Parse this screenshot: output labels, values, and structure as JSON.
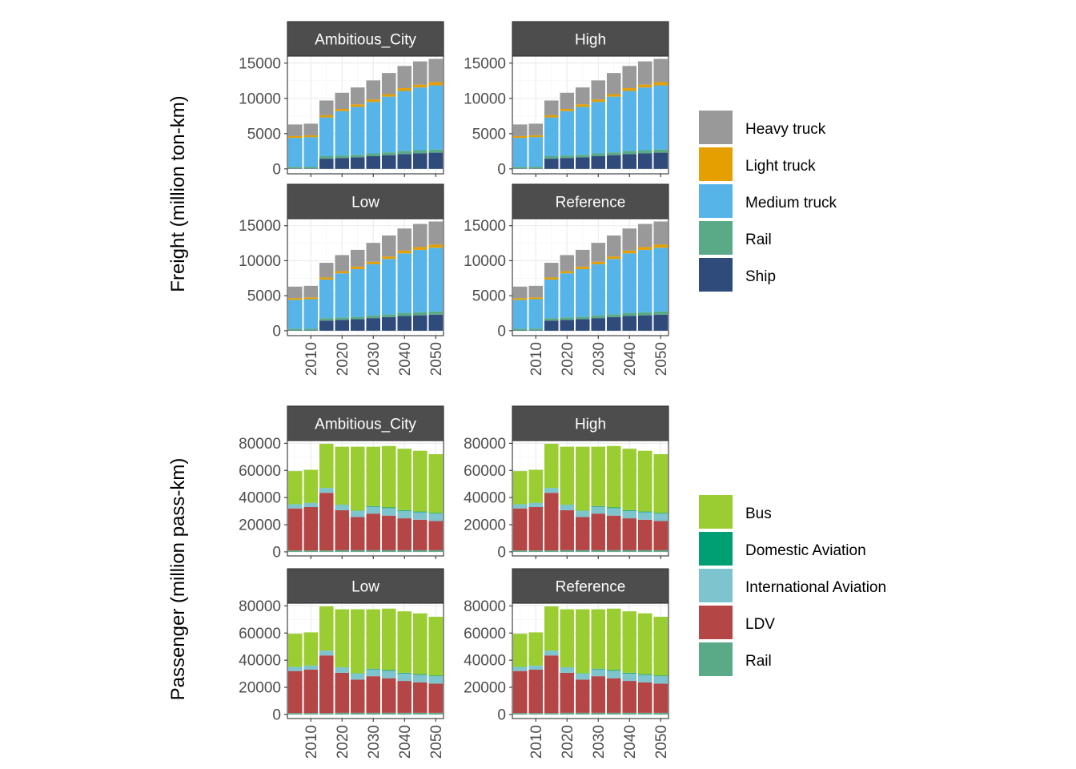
{
  "chart_data": [
    {
      "type": "bar",
      "stacked": true,
      "ylabel": "Freight (million ton-km)",
      "facets": [
        "Ambitious_City",
        "High",
        "Low",
        "Reference"
      ],
      "x": [
        2005,
        2010,
        2015,
        2020,
        2025,
        2030,
        2035,
        2040,
        2045,
        2050
      ],
      "x_ticks": [
        2010,
        2020,
        2030,
        2040,
        2050
      ],
      "y_ticks": [
        0,
        5000,
        10000,
        15000
      ],
      "ylim": [
        -700,
        16000
      ],
      "grid": true,
      "legend_position": "right",
      "stack_order_bottom_to_top": [
        "Ship",
        "Rail",
        "Medium truck",
        "Light truck",
        "Heavy truck"
      ],
      "legend": [
        {
          "name": "Heavy truck",
          "color": "#999999"
        },
        {
          "name": "Light truck",
          "color": "#E69F00"
        },
        {
          "name": "Medium truck",
          "color": "#56B4E9"
        },
        {
          "name": "Rail",
          "color": "#5AAA88"
        },
        {
          "name": "Ship",
          "color": "#2F4B7C"
        }
      ],
      "series": [
        {
          "name": "Ship",
          "values": [
            50,
            60,
            1450,
            1550,
            1650,
            1800,
            1950,
            2100,
            2200,
            2300
          ]
        },
        {
          "name": "Rail",
          "values": [
            250,
            250,
            350,
            350,
            350,
            400,
            400,
            450,
            450,
            450
          ]
        },
        {
          "name": "Medium truck",
          "values": [
            4100,
            4200,
            5500,
            6300,
            6800,
            7300,
            7900,
            8500,
            8900,
            9100
          ]
        },
        {
          "name": "Light truck",
          "values": [
            250,
            250,
            300,
            300,
            350,
            350,
            350,
            400,
            400,
            450
          ]
        },
        {
          "name": "Heavy truck",
          "values": [
            1650,
            1650,
            2100,
            2300,
            2400,
            2700,
            3000,
            3150,
            3300,
            3300
          ]
        }
      ]
    },
    {
      "type": "bar",
      "stacked": true,
      "ylabel": "Passenger (million pass-km)",
      "facets": [
        "Ambitious_City",
        "High",
        "Low",
        "Reference"
      ],
      "x": [
        2005,
        2010,
        2015,
        2020,
        2025,
        2030,
        2035,
        2040,
        2045,
        2050
      ],
      "x_ticks": [
        2010,
        2020,
        2030,
        2040,
        2050
      ],
      "y_ticks": [
        0,
        20000,
        40000,
        60000,
        80000
      ],
      "ylim": [
        -3000,
        82000
      ],
      "grid": true,
      "legend_position": "right",
      "stack_order_bottom_to_top": [
        "Rail",
        "LDV",
        "International Aviation",
        "Domestic Aviation",
        "Bus"
      ],
      "legend": [
        {
          "name": "Bus",
          "color": "#9ACD32"
        },
        {
          "name": "Domestic Aviation",
          "color": "#009E73"
        },
        {
          "name": "International Aviation",
          "color": "#7EC4CF"
        },
        {
          "name": "LDV",
          "color": "#B44646"
        },
        {
          "name": "Rail",
          "color": "#5AAA88"
        }
      ],
      "series": [
        {
          "name": "Rail",
          "values": [
            1000,
            1000,
            1000,
            1200,
            1200,
            1200,
            1200,
            1200,
            1200,
            1200
          ]
        },
        {
          "name": "LDV",
          "values": [
            31000,
            32000,
            42500,
            29500,
            24500,
            27000,
            25500,
            23500,
            22500,
            21500
          ]
        },
        {
          "name": "International Aviation",
          "values": [
            3000,
            3000,
            3500,
            4000,
            4500,
            5000,
            5500,
            5500,
            5500,
            5500
          ]
        },
        {
          "name": "Domestic Aviation",
          "values": [
            100,
            100,
            100,
            100,
            200,
            500,
            500,
            500,
            500,
            500
          ]
        },
        {
          "name": "Bus",
          "values": [
            24400,
            24400,
            32500,
            42700,
            47100,
            43800,
            45300,
            45300,
            44800,
            43300
          ]
        }
      ]
    }
  ]
}
